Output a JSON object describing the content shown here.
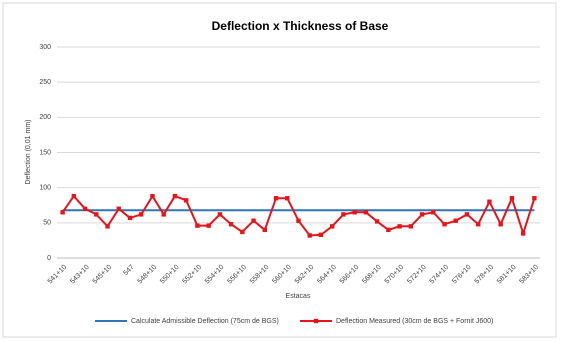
{
  "chart_data": {
    "type": "line",
    "title": "Deflection x Thickness of Base",
    "x_label": "Estacas",
    "y_label": "Deflection (0,01 mm)",
    "categories": [
      "541+10",
      null,
      "543+10",
      null,
      "545+10",
      null,
      "547",
      null,
      "548+10",
      null,
      "550+10",
      null,
      "552+10",
      null,
      "554+10",
      null,
      "556+10",
      null,
      "558+10",
      null,
      "560+10",
      null,
      "562+10",
      null,
      "564+10",
      null,
      "566+10",
      null,
      "568+10",
      null,
      "570+10",
      null,
      "572+10",
      null,
      "574+10",
      null,
      "576+10",
      null,
      "578+10",
      null,
      "581+10",
      null,
      "583+10"
    ],
    "series": [
      {
        "name": "Calculate Admissible Deflection (75cm de BGS)",
        "color": "#2e75b6",
        "marker": false,
        "values": [
          68,
          68,
          68,
          68,
          68,
          68,
          68,
          68,
          68,
          68,
          68,
          68,
          68,
          68,
          68,
          68,
          68,
          68,
          68,
          68,
          68,
          68,
          68,
          68,
          68,
          68,
          68,
          68,
          68,
          68,
          68,
          68,
          68,
          68,
          68,
          68,
          68,
          68,
          68,
          68,
          68,
          68,
          68
        ]
      },
      {
        "name": "Deflection Measured (30cm de BGS + Fornit J600)",
        "color": "#e8141b",
        "marker": true,
        "values": [
          65,
          88,
          70,
          62,
          45,
          70,
          57,
          62,
          88,
          62,
          88,
          82,
          46,
          46,
          62,
          48,
          37,
          53,
          40,
          85,
          85,
          53,
          32,
          33,
          45,
          62,
          65,
          65,
          52,
          40,
          45,
          45,
          62,
          65,
          48,
          53,
          62,
          48,
          80,
          48,
          85,
          35,
          85
        ]
      }
    ],
    "ylim": [
      0,
      300
    ],
    "yticks": [
      0,
      50,
      100,
      150,
      200,
      250,
      300
    ],
    "grid": true
  }
}
